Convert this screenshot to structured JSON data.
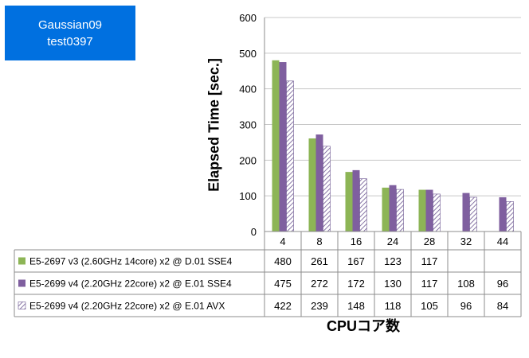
{
  "title_box": {
    "line1": "Gaussian09",
    "line2": "test0397"
  },
  "chart_data": {
    "type": "bar",
    "categories": [
      "4",
      "8",
      "16",
      "24",
      "28",
      "32",
      "44"
    ],
    "ylabel": "Elapsed Time [sec.]",
    "xlabel": "CPUコア数",
    "ylim": [
      0,
      600
    ],
    "yticks": [
      0,
      100,
      200,
      300,
      400,
      500,
      600
    ],
    "grid": true,
    "legend": "data-table",
    "series": [
      {
        "name": "E5-2697 v3 (2.60GHz 14core) x2 @ D.01 SSE4",
        "color": "#8db556",
        "pattern": "solid",
        "values": [
          480,
          261,
          167,
          123,
          117,
          null,
          null
        ]
      },
      {
        "name": "E5-2699 v4 (2.20GHz 22core) x2 @ E.01 SSE4",
        "color": "#7f5f9f",
        "pattern": "solid",
        "values": [
          475,
          272,
          172,
          130,
          117,
          108,
          96
        ]
      },
      {
        "name": "E5-2699 v4 (2.20GHz 22core) x2 @ E.01 AVX",
        "color": "#6c5590",
        "pattern": "hatched",
        "values": [
          422,
          239,
          148,
          118,
          105,
          96,
          84
        ]
      }
    ]
  }
}
